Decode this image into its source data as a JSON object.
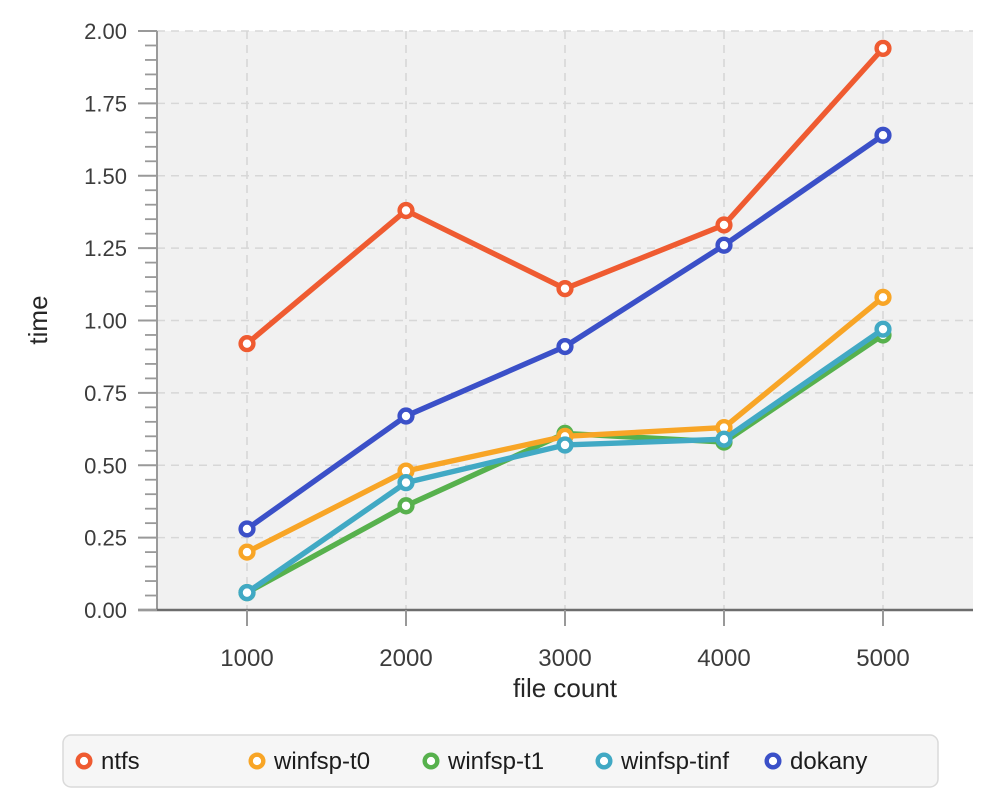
{
  "chart_data": {
    "type": "line",
    "title": "",
    "xlabel": "file count",
    "ylabel": "time",
    "x": [
      1000,
      2000,
      3000,
      4000,
      5000
    ],
    "series": [
      {
        "name": "ntfs",
        "color": "#ef5b31",
        "values": [
          0.92,
          1.38,
          1.11,
          1.33,
          1.94
        ]
      },
      {
        "name": "winfsp-t0",
        "color": "#f8a526",
        "values": [
          0.2,
          0.48,
          0.6,
          0.63,
          1.08
        ]
      },
      {
        "name": "winfsp-t1",
        "color": "#57b14d",
        "values": [
          0.06,
          0.36,
          0.61,
          0.58,
          0.95
        ]
      },
      {
        "name": "winfsp-tinf",
        "color": "#41a9c4",
        "values": [
          0.06,
          0.44,
          0.57,
          0.59,
          0.97
        ]
      },
      {
        "name": "dokany",
        "color": "#3b50c8",
        "values": [
          0.28,
          0.67,
          0.91,
          1.26,
          1.64
        ]
      }
    ],
    "ylim": [
      0.0,
      2.0
    ],
    "ytick_step": 0.25,
    "yminor_tick_step": 0.05,
    "ytick_labels": [
      "0.00",
      "0.25",
      "0.50",
      "0.75",
      "1.00",
      "1.25",
      "1.50",
      "1.75",
      "2.00"
    ],
    "xticks": [
      1000,
      2000,
      3000,
      4000,
      5000
    ],
    "grid": "dashed",
    "legend_position": "bottom",
    "legend": [
      "ntfs",
      "winfsp-t0",
      "winfsp-t1",
      "winfsp-tinf",
      "dokany"
    ],
    "draw_order": [
      "winfsp-t1",
      "winfsp-t0",
      "winfsp-tinf",
      "ntfs",
      "dokany"
    ]
  },
  "styles": {
    "page_bg": "#ffffff",
    "plot_bg": "#f1f1f1",
    "grid_color": "#d7d7d7",
    "x_axis_color": "#6d6d6d",
    "y_axis_color": "#9a9a9a",
    "tick_color": "#999999",
    "tick_label_color": "#3c3c3c",
    "axis_label_color": "#262626",
    "marker_fill": "#ffffff",
    "legend_bg": "#f6f6f6",
    "legend_border": "#dadada",
    "legend_text_color": "#1c1c1c"
  }
}
